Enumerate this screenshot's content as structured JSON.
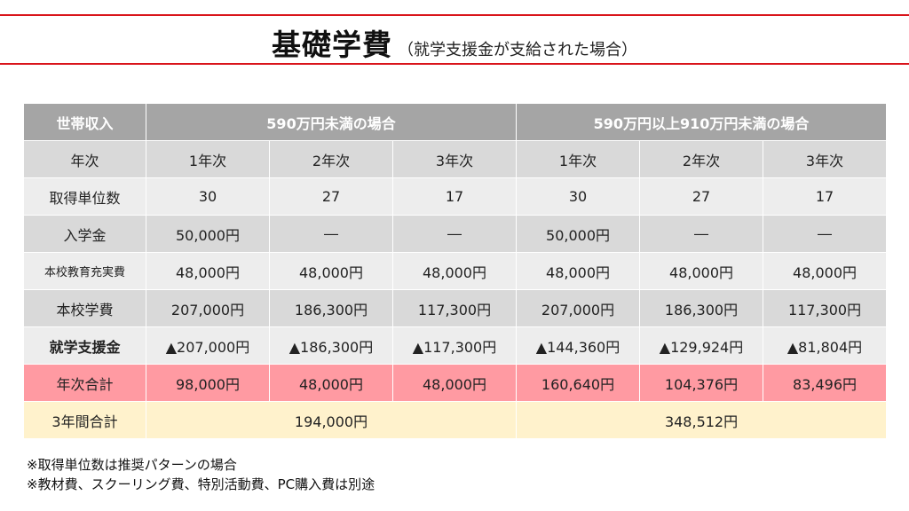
{
  "title": {
    "main": "基礎学費",
    "sub": "（就学支援金が支給された場合）"
  },
  "table": {
    "header": {
      "income_label": "世帯収入",
      "group_a": "590万円未満の場合",
      "group_b": "590万円以上910万円未満の場合"
    },
    "rows": [
      {
        "label": "年次",
        "cells": [
          "1年次",
          "2年次",
          "3年次",
          "1年次",
          "2年次",
          "3年次"
        ]
      },
      {
        "label": "取得単位数",
        "cells": [
          "30",
          "27",
          "17",
          "30",
          "27",
          "17"
        ]
      },
      {
        "label": "入学金",
        "cells": [
          "50,000円",
          "―",
          "―",
          "50,000円",
          "―",
          "―"
        ]
      },
      {
        "label": "本校教育充実費",
        "cells": [
          "48,000円",
          "48,000円",
          "48,000円",
          "48,000円",
          "48,000円",
          "48,000円"
        ]
      },
      {
        "label": "本校学費",
        "cells": [
          "207,000円",
          "186,300円",
          "117,300円",
          "207,000円",
          "186,300円",
          "117,300円"
        ]
      },
      {
        "label": "就学支援金",
        "cells": [
          "▲207,000円",
          "▲186,300円",
          "▲117,300円",
          "▲144,360円",
          "▲129,924円",
          "▲81,804円"
        ]
      },
      {
        "label": "年次合計",
        "cells": [
          "98,000円",
          "48,000円",
          "48,000円",
          "160,640円",
          "104,376円",
          "83,496円"
        ]
      }
    ],
    "three_year_total": {
      "label": "3年間合計",
      "group_a": "194,000円",
      "group_b": "348,512円"
    }
  },
  "notes": [
    "※取得単位数は推奨パターンの場合",
    "※教材費、スクーリング費、特別活動費、PC購入費は別途"
  ],
  "colors": {
    "accent_rule": "#d9141b",
    "header_bg": "#a5a5a5",
    "row_dark": "#d9d9d9",
    "row_light": "#ededed",
    "total_row": "#ff9aa2",
    "grand_total_row": "#fff2cc"
  }
}
